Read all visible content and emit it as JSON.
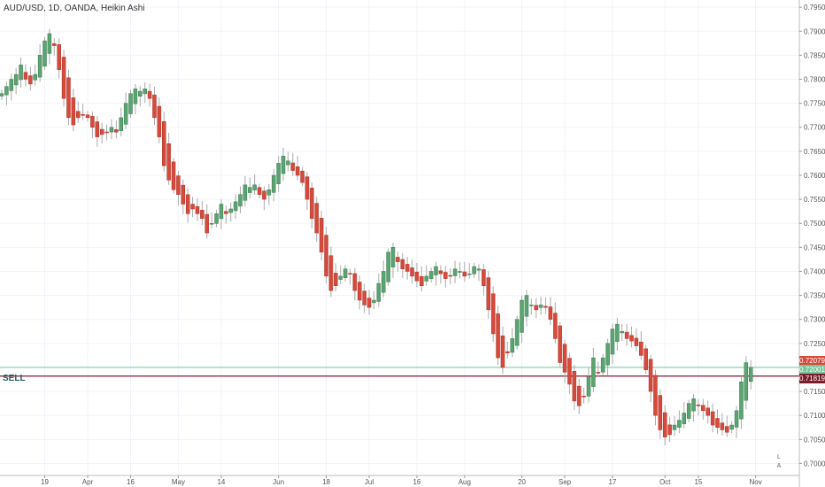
{
  "header": {
    "title": "AUD/USD, 1D, OANDA, Heikin Ashi"
  },
  "order_line": {
    "label": "SELL",
    "price": "0.71819",
    "color": "#7a1c2c"
  },
  "badges": {
    "bid": "0.72079",
    "ask": "0.72001",
    "sell": "0.71819"
  },
  "colors": {
    "up": "#5aa471",
    "down": "#d64a3c",
    "wick": "#aaaaaa",
    "grid": "#f0f3fa"
  },
  "chart_data": {
    "type": "candlestick",
    "title": "AUD/USD, 1D, OANDA, Heikin Ashi",
    "y_axis": {
      "ylim": [
        0.6975,
        0.7965
      ],
      "ticks": [
        "0.79500",
        "0.79000",
        "0.78500",
        "0.78000",
        "0.77500",
        "0.77000",
        "0.76500",
        "0.76000",
        "0.75500",
        "0.75000",
        "0.74500",
        "0.74000",
        "0.73500",
        "0.73000",
        "0.72500",
        "0.72000",
        "0.71500",
        "0.71000",
        "0.70500",
        "0.70000"
      ]
    },
    "x_axis": {
      "ticks": [
        {
          "label": "19",
          "i": 9
        },
        {
          "label": "Apr",
          "i": 18
        },
        {
          "label": "16",
          "i": 27
        },
        {
          "label": "May",
          "i": 37
        },
        {
          "label": "14",
          "i": 46
        },
        {
          "label": "Jun",
          "i": 58
        },
        {
          "label": "18",
          "i": 68
        },
        {
          "label": "Jul",
          "i": 77
        },
        {
          "label": "16",
          "i": 87
        },
        {
          "label": "Aug",
          "i": 97
        },
        {
          "label": "20",
          "i": 109
        },
        {
          "label": "Sep",
          "i": 118
        },
        {
          "label": "17",
          "i": 128
        },
        {
          "label": "Oct",
          "i": 139
        },
        {
          "label": "15",
          "i": 146
        },
        {
          "label": "Nov",
          "i": 158
        }
      ]
    },
    "horizontal_lines": [
      0.72001,
      0.71819
    ],
    "closes": [
      0.777,
      0.7785,
      0.78,
      0.781,
      0.783,
      0.78,
      0.779,
      0.781,
      0.785,
      0.788,
      0.7895,
      0.787,
      0.782,
      0.776,
      0.772,
      0.7705,
      0.772,
      0.7725,
      0.772,
      0.77,
      0.768,
      0.7685,
      0.769,
      0.77,
      0.769,
      0.772,
      0.775,
      0.777,
      0.778,
      0.7775,
      0.778,
      0.776,
      0.772,
      0.768,
      0.762,
      0.759,
      0.757,
      0.756,
      0.754,
      0.752,
      0.753,
      0.752,
      0.751,
      0.748,
      0.75,
      0.752,
      0.754,
      0.752,
      0.753,
      0.7545,
      0.756,
      0.758,
      0.7575,
      0.758,
      0.756,
      0.755,
      0.757,
      0.76,
      0.7625,
      0.764,
      0.763,
      0.761,
      0.76,
      0.7585,
      0.755,
      0.751,
      0.748,
      0.744,
      0.739,
      0.736,
      0.737,
      0.739,
      0.7405,
      0.7395,
      0.736,
      0.734,
      0.733,
      0.7325,
      0.734,
      0.7375,
      0.74,
      0.744,
      0.745,
      0.742,
      0.7405,
      0.74,
      0.739,
      0.738,
      0.737,
      0.739,
      0.74,
      0.741,
      0.7395,
      0.7385,
      0.739,
      0.7405,
      0.74,
      0.739,
      0.7395,
      0.741,
      0.7405,
      0.737,
      0.732,
      0.727,
      0.722,
      0.72,
      0.723,
      0.726,
      0.73,
      0.734,
      0.735,
      0.733,
      0.732,
      0.733,
      0.7325,
      0.73,
      0.726,
      0.721,
      0.719,
      0.7165,
      0.713,
      0.712,
      0.714,
      0.718,
      0.722,
      0.719,
      0.722,
      0.725,
      0.728,
      0.729,
      0.7275,
      0.726,
      0.7255,
      0.7245,
      0.7225,
      0.7195,
      0.715,
      0.71,
      0.707,
      0.7055,
      0.706,
      0.708,
      0.709,
      0.7105,
      0.7125,
      0.7135,
      0.712,
      0.711,
      0.71,
      0.708,
      0.7075,
      0.707,
      0.7065,
      0.708,
      0.711,
      0.717,
      0.721,
      0.72
    ]
  },
  "scale_buttons": {
    "log": "L",
    "auto": "A"
  }
}
